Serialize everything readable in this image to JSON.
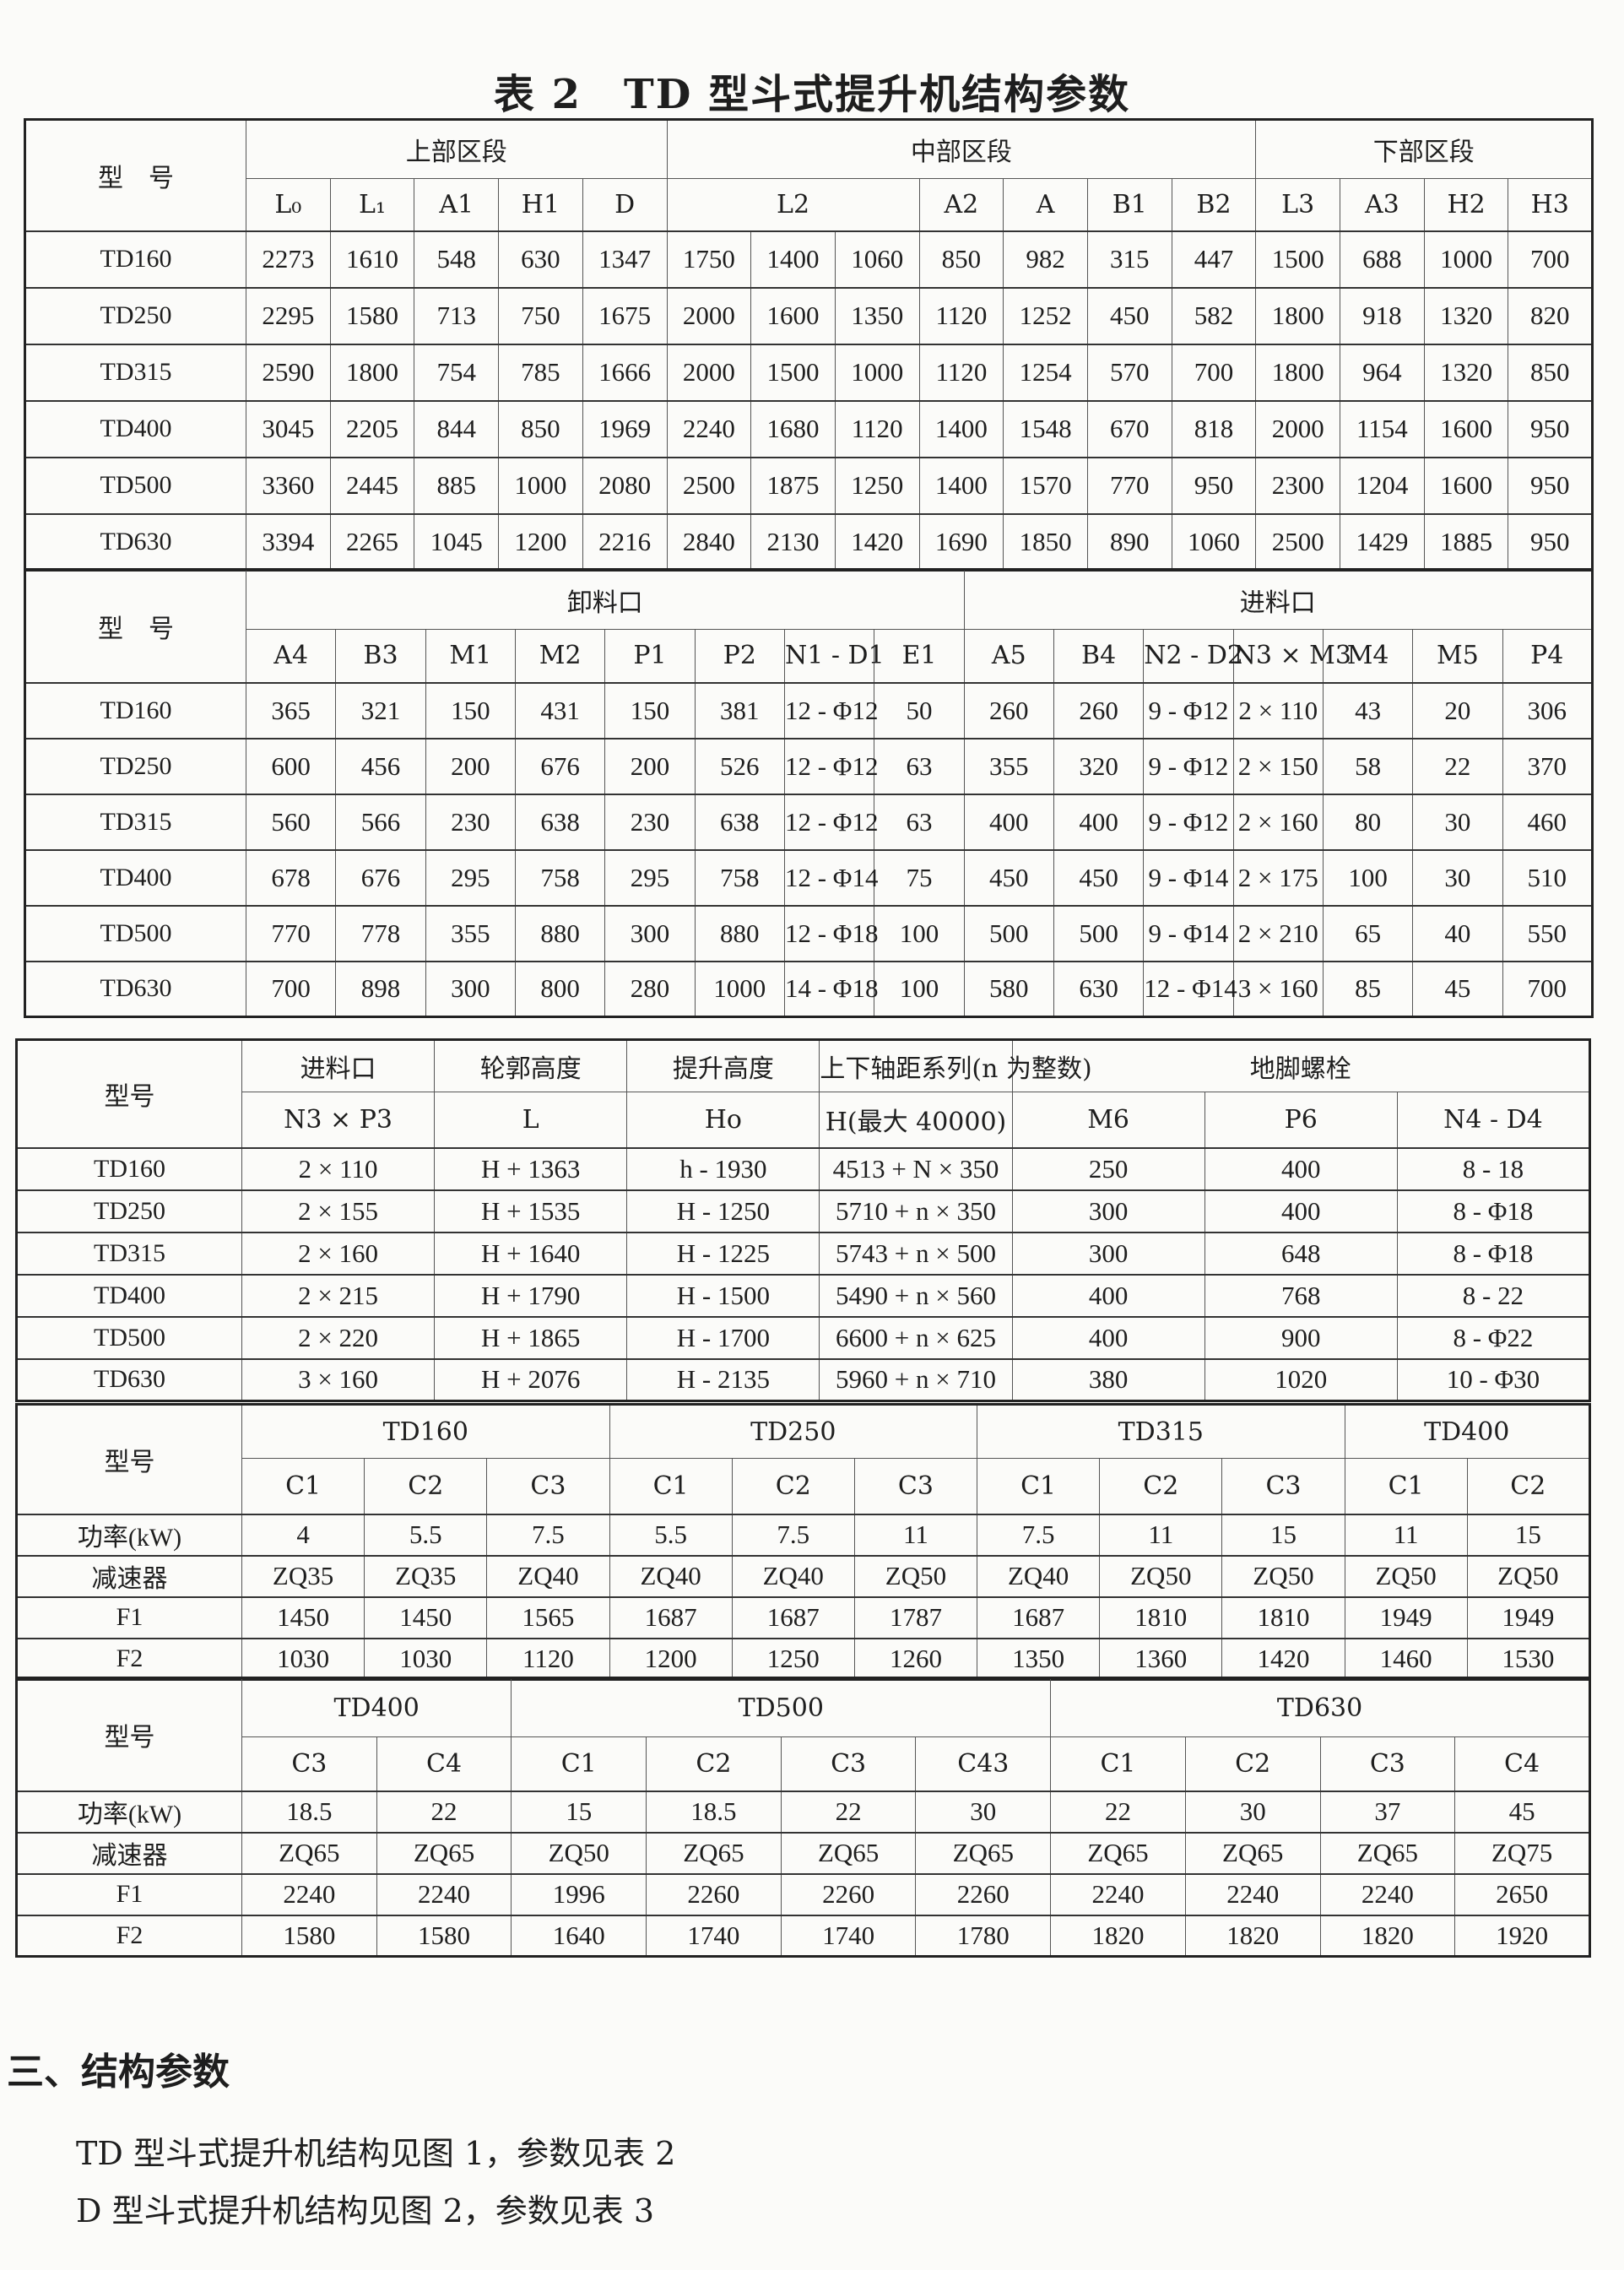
{
  "title": "表 2　TD 型斗式提升机结构参数",
  "tables": [
    {
      "model_label": "型　号",
      "groups": [
        {
          "label": "上部区段",
          "span": 5
        },
        {
          "label": "中部区段",
          "span": 7
        },
        {
          "label": "下部区段",
          "span": 4
        }
      ],
      "columns": [
        {
          "label": "L₀",
          "span": 1
        },
        {
          "label": "L₁",
          "span": 1
        },
        {
          "label": "A1",
          "span": 1
        },
        {
          "label": "H1",
          "span": 1
        },
        {
          "label": "D",
          "span": 1
        },
        {
          "label": "L2",
          "span": 3
        },
        {
          "label": "A2",
          "span": 1
        },
        {
          "label": "A",
          "span": 1
        },
        {
          "label": "B1",
          "span": 1
        },
        {
          "label": "B2",
          "span": 1
        },
        {
          "label": "L3",
          "span": 1
        },
        {
          "label": "A3",
          "span": 1
        },
        {
          "label": "H2",
          "span": 1
        },
        {
          "label": "H3",
          "span": 1
        }
      ],
      "rows": [
        {
          "model": "TD160",
          "values": [
            "2273",
            "1610",
            "548",
            "630",
            "1347",
            "1750",
            "1400",
            "1060",
            "850",
            "982",
            "315",
            "447",
            "1500",
            "688",
            "1000",
            "700"
          ]
        },
        {
          "model": "TD250",
          "values": [
            "2295",
            "1580",
            "713",
            "750",
            "1675",
            "2000",
            "1600",
            "1350",
            "1120",
            "1252",
            "450",
            "582",
            "1800",
            "918",
            "1320",
            "820"
          ]
        },
        {
          "model": "TD315",
          "values": [
            "2590",
            "1800",
            "754",
            "785",
            "1666",
            "2000",
            "1500",
            "1000",
            "1120",
            "1254",
            "570",
            "700",
            "1800",
            "964",
            "1320",
            "850"
          ]
        },
        {
          "model": "TD400",
          "values": [
            "3045",
            "2205",
            "844",
            "850",
            "1969",
            "2240",
            "1680",
            "1120",
            "1400",
            "1548",
            "670",
            "818",
            "2000",
            "1154",
            "1600",
            "950"
          ]
        },
        {
          "model": "TD500",
          "values": [
            "3360",
            "2445",
            "885",
            "1000",
            "2080",
            "2500",
            "1875",
            "1250",
            "1400",
            "1570",
            "770",
            "950",
            "2300",
            "1204",
            "1600",
            "950"
          ]
        },
        {
          "model": "TD630",
          "values": [
            "3394",
            "2265",
            "1045",
            "1200",
            "2216",
            "2840",
            "2130",
            "1420",
            "1690",
            "1850",
            "890",
            "1060",
            "2500",
            "1429",
            "1885",
            "950"
          ]
        }
      ]
    },
    {
      "model_label": "型　号",
      "groups": [
        {
          "label": "卸料口",
          "span": 8
        },
        {
          "label": "进料口",
          "span": 7
        }
      ],
      "columns": [
        {
          "label": "A4",
          "span": 1
        },
        {
          "label": "B3",
          "span": 1
        },
        {
          "label": "M1",
          "span": 1
        },
        {
          "label": "M2",
          "span": 1
        },
        {
          "label": "P1",
          "span": 1
        },
        {
          "label": "P2",
          "span": 1
        },
        {
          "label": "N1 - D1",
          "span": 1
        },
        {
          "label": "E1",
          "span": 1
        },
        {
          "label": "A5",
          "span": 1
        },
        {
          "label": "B4",
          "span": 1
        },
        {
          "label": "N2 - D2",
          "span": 1
        },
        {
          "label": "N3 × M3",
          "span": 1
        },
        {
          "label": "M4",
          "span": 1
        },
        {
          "label": "M5",
          "span": 1
        },
        {
          "label": "P4",
          "span": 1
        }
      ],
      "rows": [
        {
          "model": "TD160",
          "values": [
            "365",
            "321",
            "150",
            "431",
            "150",
            "381",
            "12 - Φ12",
            "50",
            "260",
            "260",
            "9 - Φ12",
            "2 × 110",
            "43",
            "20",
            "306"
          ]
        },
        {
          "model": "TD250",
          "values": [
            "600",
            "456",
            "200",
            "676",
            "200",
            "526",
            "12 - Φ12",
            "63",
            "355",
            "320",
            "9 - Φ12",
            "2 × 150",
            "58",
            "22",
            "370"
          ]
        },
        {
          "model": "TD315",
          "values": [
            "560",
            "566",
            "230",
            "638",
            "230",
            "638",
            "12 - Φ12",
            "63",
            "400",
            "400",
            "9 - Φ12",
            "2 × 160",
            "80",
            "30",
            "460"
          ]
        },
        {
          "model": "TD400",
          "values": [
            "678",
            "676",
            "295",
            "758",
            "295",
            "758",
            "12 - Φ14",
            "75",
            "450",
            "450",
            "9 - Φ14",
            "2 × 175",
            "100",
            "30",
            "510"
          ]
        },
        {
          "model": "TD500",
          "values": [
            "770",
            "778",
            "355",
            "880",
            "300",
            "880",
            "12 - Φ18",
            "100",
            "500",
            "500",
            "9 - Φ14",
            "2 × 210",
            "65",
            "40",
            "550"
          ]
        },
        {
          "model": "TD630",
          "values": [
            "700",
            "898",
            "300",
            "800",
            "280",
            "1000",
            "14 - Φ18",
            "100",
            "580",
            "630",
            "12 - Φ14",
            "3 × 160",
            "85",
            "45",
            "700"
          ]
        }
      ]
    },
    {
      "model_label": "型号",
      "groups": [
        {
          "label": "进料口",
          "span": 1
        },
        {
          "label": "轮郭高度",
          "span": 1
        },
        {
          "label": "提升高度",
          "span": 1
        },
        {
          "label": "上下轴距系列(n 为整数)",
          "span": 1
        },
        {
          "label": "地脚螺栓",
          "span": 3
        }
      ],
      "columns": [
        {
          "label": "N3 × P3",
          "span": 1
        },
        {
          "label": "L",
          "span": 1
        },
        {
          "label": "Ho",
          "span": 1
        },
        {
          "label": "H(最大 40000)",
          "span": 1
        },
        {
          "label": "M6",
          "span": 1
        },
        {
          "label": "P6",
          "span": 1
        },
        {
          "label": "N4 - D4",
          "span": 1
        }
      ],
      "rows": [
        {
          "model": "TD160",
          "values": [
            "2 × 110",
            "H + 1363",
            "h - 1930",
            "4513 + N × 350",
            "250",
            "400",
            "8 - 18"
          ]
        },
        {
          "model": "TD250",
          "values": [
            "2 × 155",
            "H + 1535",
            "H - 1250",
            "5710 + n × 350",
            "300",
            "400",
            "8 - Φ18"
          ]
        },
        {
          "model": "TD315",
          "values": [
            "2 × 160",
            "H + 1640",
            "H - 1225",
            "5743 + n × 500",
            "300",
            "648",
            "8 - Φ18"
          ]
        },
        {
          "model": "TD400",
          "values": [
            "2 × 215",
            "H + 1790",
            "H - 1500",
            "5490 + n × 560",
            "400",
            "768",
            "8 - 22"
          ]
        },
        {
          "model": "TD500",
          "values": [
            "2 × 220",
            "H + 1865",
            "H - 1700",
            "6600 + n × 625",
            "400",
            "900",
            "8 - Φ22"
          ]
        },
        {
          "model": "TD630",
          "values": [
            "3 × 160",
            "H + 2076",
            "H - 2135",
            "5960 + n × 710",
            "380",
            "1020",
            "10 - Φ30"
          ]
        }
      ]
    },
    {
      "model_label": "型号",
      "groups": [
        {
          "label": "TD160",
          "span": 3
        },
        {
          "label": "TD250",
          "span": 3
        },
        {
          "label": "TD315",
          "span": 3
        },
        {
          "label": "TD400",
          "span": 2
        }
      ],
      "columns": [
        {
          "label": "C1",
          "span": 1
        },
        {
          "label": "C2",
          "span": 1
        },
        {
          "label": "C3",
          "span": 1
        },
        {
          "label": "C1",
          "span": 1
        },
        {
          "label": "C2",
          "span": 1
        },
        {
          "label": "C3",
          "span": 1
        },
        {
          "label": "C1",
          "span": 1
        },
        {
          "label": "C2",
          "span": 1
        },
        {
          "label": "C3",
          "span": 1
        },
        {
          "label": "C1",
          "span": 1
        },
        {
          "label": "C2",
          "span": 1
        }
      ],
      "rows": [
        {
          "model": "功率(kW)",
          "values": [
            "4",
            "5.5",
            "7.5",
            "5.5",
            "7.5",
            "11",
            "7.5",
            "11",
            "15",
            "11",
            "15"
          ]
        },
        {
          "model": "减速器",
          "values": [
            "ZQ35",
            "ZQ35",
            "ZQ40",
            "ZQ40",
            "ZQ40",
            "ZQ50",
            "ZQ40",
            "ZQ50",
            "ZQ50",
            "ZQ50",
            "ZQ50"
          ]
        },
        {
          "model": "F1",
          "values": [
            "1450",
            "1450",
            "1565",
            "1687",
            "1687",
            "1787",
            "1687",
            "1810",
            "1810",
            "1949",
            "1949"
          ]
        },
        {
          "model": "F2",
          "values": [
            "1030",
            "1030",
            "1120",
            "1200",
            "1250",
            "1260",
            "1350",
            "1360",
            "1420",
            "1460",
            "1530"
          ]
        }
      ]
    },
    {
      "model_label": "型号",
      "groups": [
        {
          "label": "TD400",
          "span": 2
        },
        {
          "label": "TD500",
          "span": 4
        },
        {
          "label": "TD630",
          "span": 4
        }
      ],
      "columns": [
        {
          "label": "C3",
          "span": 1
        },
        {
          "label": "C4",
          "span": 1
        },
        {
          "label": "C1",
          "span": 1
        },
        {
          "label": "C2",
          "span": 1
        },
        {
          "label": "C3",
          "span": 1
        },
        {
          "label": "C43",
          "span": 1
        },
        {
          "label": "C1",
          "span": 1
        },
        {
          "label": "C2",
          "span": 1
        },
        {
          "label": "C3",
          "span": 1
        },
        {
          "label": "C4",
          "span": 1
        }
      ],
      "rows": [
        {
          "model": "功率(kW)",
          "values": [
            "18.5",
            "22",
            "15",
            "18.5",
            "22",
            "30",
            "22",
            "30",
            "37",
            "45"
          ]
        },
        {
          "model": "减速器",
          "values": [
            "ZQ65",
            "ZQ65",
            "ZQ50",
            "ZQ65",
            "ZQ65",
            "ZQ65",
            "ZQ65",
            "ZQ65",
            "ZQ65",
            "ZQ75"
          ]
        },
        {
          "model": "F1",
          "values": [
            "2240",
            "2240",
            "1996",
            "2260",
            "2260",
            "2260",
            "2240",
            "2240",
            "2240",
            "2650"
          ]
        },
        {
          "model": "F2",
          "values": [
            "1580",
            "1580",
            "1640",
            "1740",
            "1740",
            "1780",
            "1820",
            "1820",
            "1820",
            "1920"
          ]
        }
      ]
    }
  ],
  "section_heading": "三、结构参数",
  "paragraphs": [
    "TD 型斗式提升机结构见图 1，参数见表 2",
    "D 型斗式提升机结构见图 2，参数见表 3"
  ]
}
